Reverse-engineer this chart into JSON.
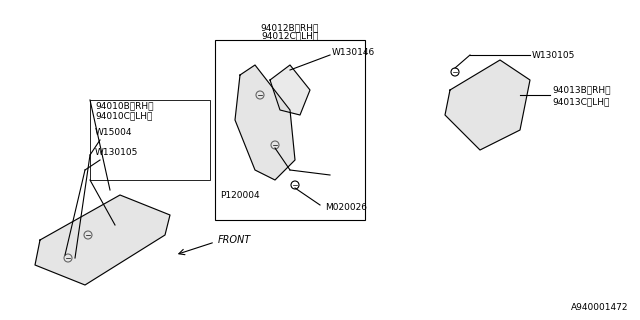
{
  "bg_color": "#ffffff",
  "line_color": "#000000",
  "gray_color": "#888888",
  "title_ref": "A940001472",
  "labels": {
    "part1_top": "94012B〈RH〉",
    "part1_bot": "94012C〈LH〉",
    "part1_screw": "W130146",
    "part1_pin": "P120004",
    "part1_nut": "M020026",
    "part2_top": "94010B〈RH〉",
    "part2_bot": "94010C〈LH〉",
    "part2_screw1": "W15004",
    "part2_screw2": "W130105",
    "part3_top": "94013B〈RH〉",
    "part3_bot": "94013C〈LH〉",
    "part3_screw": "W130105",
    "front_label": "←FRONT"
  },
  "font_size_label": 6.5,
  "font_size_ref": 6.5
}
